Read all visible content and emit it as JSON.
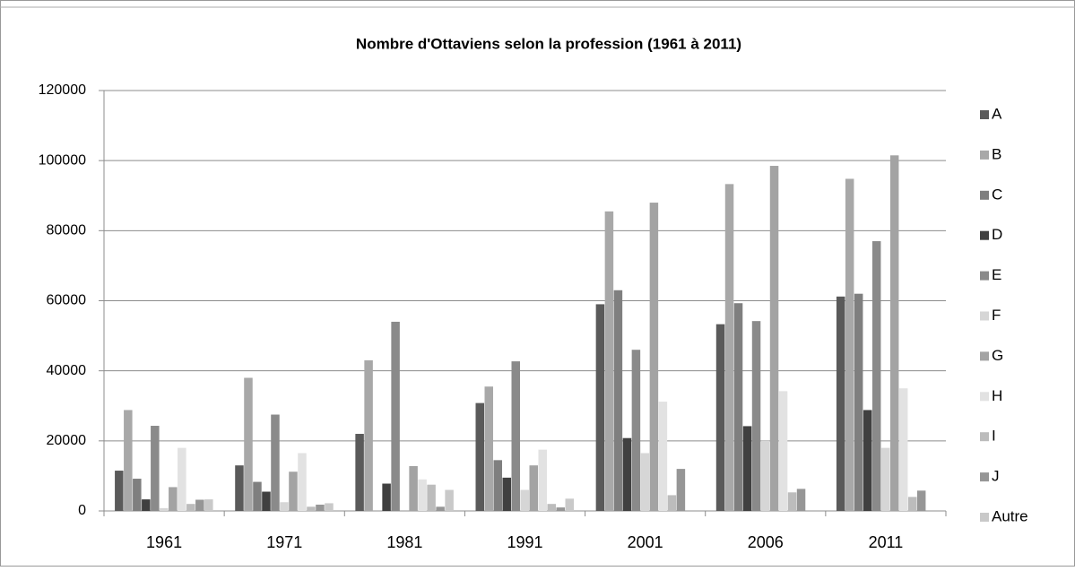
{
  "chart_data": {
    "type": "bar",
    "title": "Nombre d'Ottaviens selon la profession (1961 à 2011)",
    "categories": [
      "1961",
      "1971",
      "1981",
      "1991",
      "2001",
      "2006",
      "2011"
    ],
    "series": [
      {
        "name": "A",
        "color": "#5a5a5a",
        "values": [
          11500,
          13000,
          22000,
          30800,
          59000,
          53300,
          61200
        ]
      },
      {
        "name": "B",
        "color": "#a8a8a8",
        "values": [
          28800,
          38000,
          43000,
          35500,
          85500,
          93300,
          94800
        ]
      },
      {
        "name": "C",
        "color": "#7f7f7f",
        "values": [
          9200,
          8300,
          0,
          14500,
          63000,
          59300,
          62000
        ]
      },
      {
        "name": "D",
        "color": "#404040",
        "values": [
          3300,
          5500,
          7800,
          9500,
          20800,
          24200,
          28800
        ]
      },
      {
        "name": "E",
        "color": "#8a8a8a",
        "values": [
          24300,
          27500,
          54000,
          42700,
          46000,
          54200,
          77000
        ]
      },
      {
        "name": "F",
        "color": "#d6d6d6",
        "values": [
          800,
          2500,
          0,
          6000,
          16500,
          20000,
          18000
        ]
      },
      {
        "name": "G",
        "color": "#a3a3a3",
        "values": [
          6800,
          11200,
          12800,
          13000,
          88000,
          98500,
          101500
        ]
      },
      {
        "name": "H",
        "color": "#e2e2e2",
        "values": [
          18000,
          16500,
          9000,
          17500,
          31200,
          34200,
          35000
        ]
      },
      {
        "name": "I",
        "color": "#bcbcbc",
        "values": [
          2000,
          1200,
          7500,
          2000,
          4500,
          5300,
          4000
        ]
      },
      {
        "name": "J",
        "color": "#969696",
        "values": [
          3200,
          1800,
          1200,
          1000,
          12000,
          6300,
          5800
        ]
      },
      {
        "name": "Autre",
        "color": "#c9c9c9",
        "values": [
          3300,
          2200,
          6000,
          3500,
          0,
          0,
          0
        ]
      }
    ],
    "ylim": [
      0,
      120000
    ],
    "yticks": [
      0,
      20000,
      40000,
      60000,
      80000,
      100000,
      120000
    ],
    "grid": true,
    "legend": "right"
  }
}
